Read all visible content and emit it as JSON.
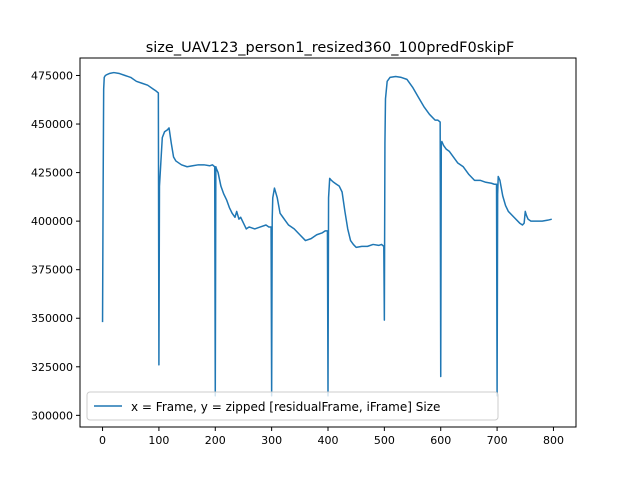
{
  "chart_data": {
    "type": "line",
    "title": "size_UAV123_person1_resized360_100predF0skipF",
    "xlabel": "",
    "ylabel": "",
    "xlim": [
      -40,
      840
    ],
    "ylim": [
      294000,
      484000
    ],
    "grid": false,
    "legend_position": "lower-left",
    "x_ticks": [
      0,
      100,
      200,
      300,
      400,
      500,
      600,
      700,
      800
    ],
    "y_ticks": [
      300000,
      325000,
      350000,
      375000,
      400000,
      425000,
      450000,
      475000
    ],
    "x_tick_labels": [
      "0",
      "100",
      "200",
      "300",
      "400",
      "500",
      "600",
      "700",
      "800"
    ],
    "y_tick_labels": [
      "300000",
      "325000",
      "350000",
      "375000",
      "400000",
      "425000",
      "450000",
      "475000"
    ],
    "series": [
      {
        "name": "x = Frame, y =  zipped [residualFrame, iFrame] Size",
        "color": "#1f77b4",
        "x": [
          0,
          1,
          2,
          3,
          5,
          8,
          12,
          20,
          30,
          40,
          50,
          60,
          70,
          80,
          90,
          95,
          99,
          100,
          101,
          103,
          106,
          110,
          115,
          118,
          122,
          126,
          130,
          140,
          150,
          160,
          170,
          180,
          190,
          195,
          199,
          200,
          201,
          202,
          205,
          210,
          215,
          220,
          225,
          230,
          235,
          238,
          242,
          245,
          250,
          255,
          260,
          270,
          280,
          290,
          295,
          299,
          300,
          301,
          302,
          305,
          310,
          315,
          320,
          325,
          330,
          340,
          350,
          360,
          370,
          380,
          390,
          395,
          399,
          400,
          401,
          403,
          406,
          410,
          415,
          420,
          425,
          430,
          435,
          440,
          445,
          450,
          460,
          470,
          480,
          490,
          495,
          499,
          500,
          501,
          502,
          505,
          510,
          520,
          530,
          540,
          550,
          560,
          570,
          580,
          590,
          595,
          599,
          600,
          601,
          602,
          605,
          610,
          615,
          620,
          625,
          630,
          640,
          650,
          660,
          670,
          680,
          690,
          695,
          699,
          700,
          701,
          702,
          705,
          710,
          715,
          720,
          730,
          740,
          745,
          748,
          750,
          752,
          755,
          760,
          770,
          780,
          790,
          797
        ],
        "y": [
          348000,
          415000,
          468000,
          474000,
          475000,
          475500,
          476000,
          476500,
          476000,
          475000,
          474000,
          472000,
          471000,
          470000,
          468000,
          467000,
          466000,
          326000,
          418000,
          428000,
          443000,
          446000,
          447000,
          448000,
          440000,
          433000,
          431000,
          429000,
          428000,
          428500,
          429000,
          429000,
          428500,
          429000,
          428000,
          310000,
          428000,
          427000,
          425000,
          418000,
          414000,
          411000,
          407000,
          404000,
          402000,
          405000,
          401000,
          402000,
          399000,
          396000,
          397000,
          396000,
          397000,
          398000,
          397000,
          397000,
          310000,
          401000,
          412000,
          417000,
          412000,
          404000,
          402000,
          400000,
          398000,
          396000,
          393000,
          390000,
          391000,
          393000,
          394000,
          395000,
          395000,
          310000,
          412000,
          422000,
          421000,
          420000,
          419000,
          418000,
          415000,
          405000,
          396000,
          390000,
          388000,
          386500,
          387000,
          387000,
          388000,
          387500,
          388000,
          387000,
          349000,
          440000,
          463000,
          472000,
          474000,
          474500,
          474000,
          473000,
          469000,
          464000,
          459000,
          455000,
          452000,
          452000,
          451000,
          320000,
          440000,
          441000,
          439000,
          437000,
          436000,
          434000,
          432000,
          430000,
          428000,
          424000,
          421000,
          421000,
          420000,
          419500,
          419000,
          419000,
          310000,
          414000,
          423000,
          421000,
          413000,
          408000,
          405000,
          402000,
          399000,
          398000,
          399000,
          405000,
          403000,
          401000,
          400000,
          400000,
          400000,
          400500,
          401000
        ]
      }
    ]
  }
}
